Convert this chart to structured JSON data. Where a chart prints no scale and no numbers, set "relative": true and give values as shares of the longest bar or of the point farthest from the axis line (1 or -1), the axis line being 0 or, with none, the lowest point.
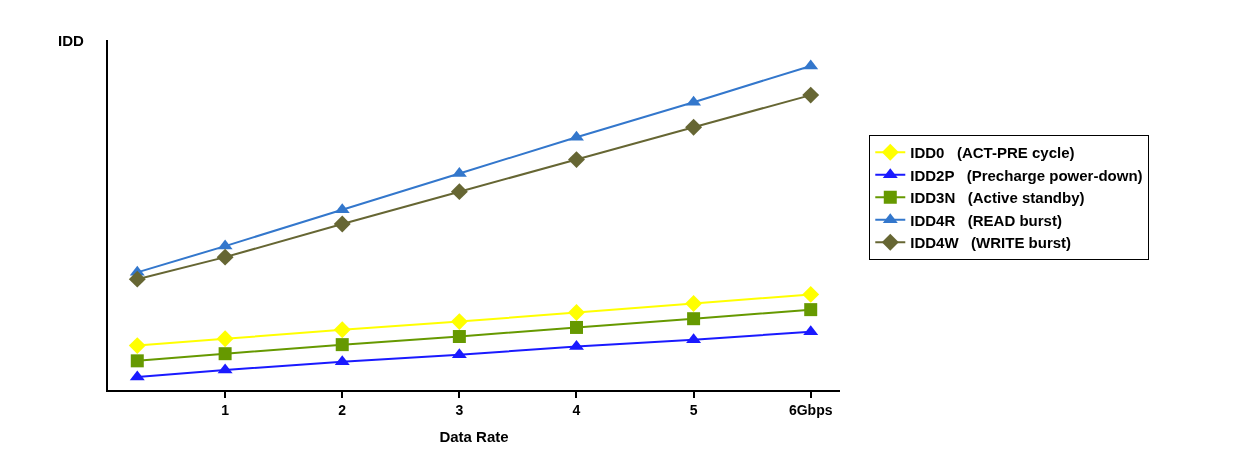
{
  "chart_data": {
    "type": "line",
    "xlabel": "Data Rate",
    "ylabel": "IDD",
    "relative": true,
    "x": [
      0.25,
      1,
      2,
      3,
      4,
      5,
      6
    ],
    "xlim": [
      0,
      6.25
    ],
    "xticks": [
      1,
      2,
      3,
      4,
      5,
      {
        "value": 6,
        "label": "6Gbps"
      }
    ],
    "legend": "right",
    "line_style": "solid",
    "series": [
      {
        "name": "IDD0   (ACT-PRE cycle)",
        "color": "#ffff00",
        "marker": "diamond",
        "values": [
          0.137,
          0.158,
          0.186,
          0.211,
          0.239,
          0.267,
          0.295
        ]
      },
      {
        "name": "IDD2P   (Precharge power-down)",
        "color": "#1a1aff",
        "marker": "triangle",
        "values": [
          0.04,
          0.062,
          0.087,
          0.109,
          0.134,
          0.155,
          0.18
        ]
      },
      {
        "name": "IDD3N   (Active standby)",
        "color": "#669900",
        "marker": "square",
        "values": [
          0.09,
          0.112,
          0.14,
          0.165,
          0.193,
          0.22,
          0.248
        ]
      },
      {
        "name": "IDD4R   (READ burst)",
        "color": "#3377cc",
        "marker": "triangle",
        "values": [
          0.363,
          0.444,
          0.556,
          0.668,
          0.78,
          0.888,
          1.0
        ]
      },
      {
        "name": "IDD4W   (WRITE burst)",
        "color": "#666633",
        "marker": "diamond",
        "values": [
          0.342,
          0.41,
          0.512,
          0.612,
          0.711,
          0.811,
          0.91
        ]
      }
    ]
  }
}
